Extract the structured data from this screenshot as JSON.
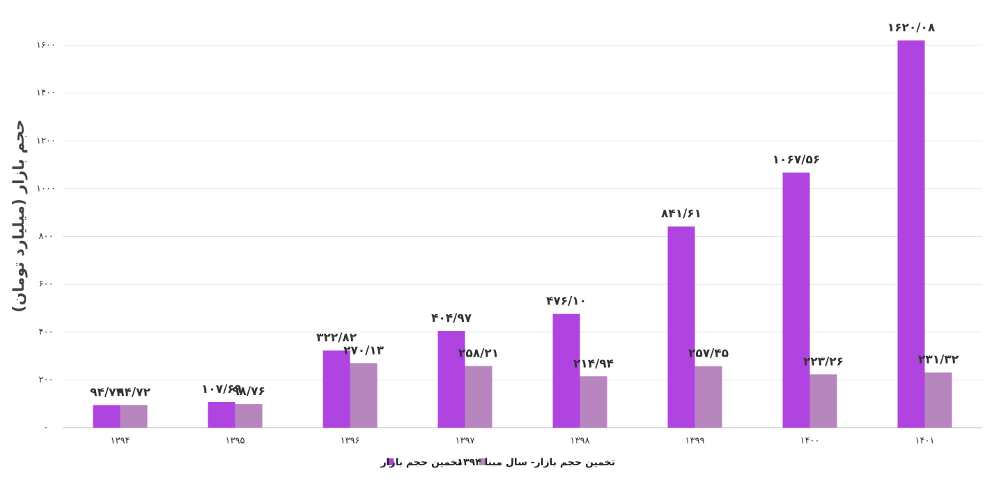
{
  "chart_data": {
    "type": "bar",
    "y_label": "حجم بازار (میلیارد تومان)",
    "categories": [
      "۱۳۹۴",
      "۱۳۹۵",
      "۱۳۹۶",
      "۱۳۹۷",
      "۱۳۹۸",
      "۱۳۹۹",
      "۱۴۰۰",
      "۱۴۰۱"
    ],
    "series": [
      {
        "name": "تخمین حجم بازار",
        "color": "#b044e0",
        "values": [
          94.72,
          107.69,
          322.82,
          404.97,
          476.1,
          841.61,
          1067.56,
          1620.08
        ],
        "value_labels": [
          "۹۴/۷۲",
          "۱۰۷/۶۹",
          "۳۲۲/۸۲",
          "۴۰۴/۹۷",
          "۴۷۶/۱۰",
          "۸۴۱/۶۱",
          "۱۰۶۷/۵۶",
          "۱۶۲۰/۰۸"
        ]
      },
      {
        "name": "تخمین حجم بازار- سال مبنا ۱۳۹۴",
        "color": "#b886bf",
        "values": [
          94.72,
          98.76,
          270.13,
          258.21,
          214.94,
          257.45,
          223.26,
          231.32
        ],
        "value_labels": [
          "۹۴/۷۲",
          "۹۸/۷۶",
          "۲۷۰/۱۳",
          "۲۵۸/۲۱",
          "۲۱۴/۹۴",
          "۲۵۷/۴۵",
          "۲۲۳/۲۶",
          "۲۳۱/۳۲"
        ]
      }
    ],
    "ylim": [
      0,
      1800
    ],
    "yticks": [
      {
        "value": 0,
        "label": "۰"
      },
      {
        "value": 200,
        "label": "۲۰۰"
      },
      {
        "value": 400,
        "label": "۴۰۰"
      },
      {
        "value": 600,
        "label": "۶۰۰"
      },
      {
        "value": 800,
        "label": "۸۰۰"
      },
      {
        "value": 1000,
        "label": "۱۰۰۰"
      },
      {
        "value": 1200,
        "label": "۱۲۰۰"
      },
      {
        "value": 1400,
        "label": "۱۴۰۰"
      },
      {
        "value": 1600,
        "label": "۱۶۰۰"
      }
    ],
    "grid": true
  }
}
